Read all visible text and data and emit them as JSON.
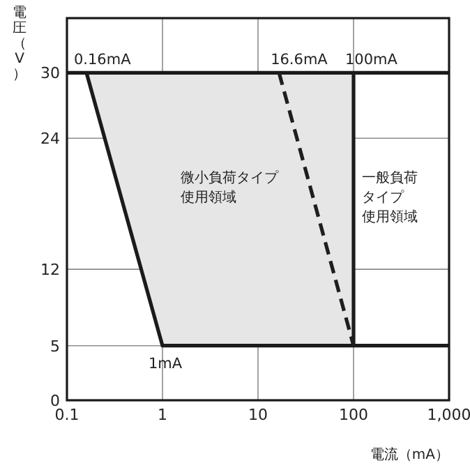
{
  "chart_data": {
    "type": "line",
    "xlabel": "電流（mA）",
    "ylabel": "電圧（V）",
    "log": "x",
    "xlim": [
      0.1,
      1000
    ],
    "xticks": [
      0.1,
      1,
      10,
      100,
      {
        "value": 1000,
        "label": "1,000"
      }
    ],
    "ylim": [
      0,
      35
    ],
    "yticks": [
      0,
      5,
      12,
      24,
      30
    ],
    "grid": true,
    "series": [
      {
        "type": "line",
        "color": "#1a1a1a",
        "x": [
          0.1,
          1000
        ],
        "values": [
          30,
          30
        ]
      },
      {
        "type": "line",
        "color": "#1b1b1b",
        "x": [
          0.16,
          1,
          1000
        ],
        "values": [
          30,
          5,
          5
        ]
      },
      {
        "type": "line",
        "color": "#1d1d1d",
        "x": [
          100,
          100
        ],
        "values": [
          5,
          30
        ]
      },
      {
        "type": "line",
        "color": "#1e1e1e",
        "x": [
          16.6,
          100
        ],
        "values": [
          30,
          5
        ],
        "line_style": "dashed"
      },
      {
        "type": "area",
        "color": "#e6e6e6",
        "x": [
          0.16,
          1,
          100,
          100
        ],
        "values": [
          30,
          5,
          5,
          30
        ]
      }
    ],
    "annotations": [
      {
        "text": "0.16mA",
        "x": 0.16,
        "y": 30
      },
      {
        "text": "16.6mA",
        "x": 16.6,
        "y": 30
      },
      {
        "text": "100mA",
        "x": 100,
        "y": 30
      },
      {
        "text": "1mA",
        "x": 1,
        "y": 5
      },
      "微小負荷タイプ",
      "使用領域",
      "一般負荷",
      "タイプ",
      "使用領域"
    ]
  }
}
